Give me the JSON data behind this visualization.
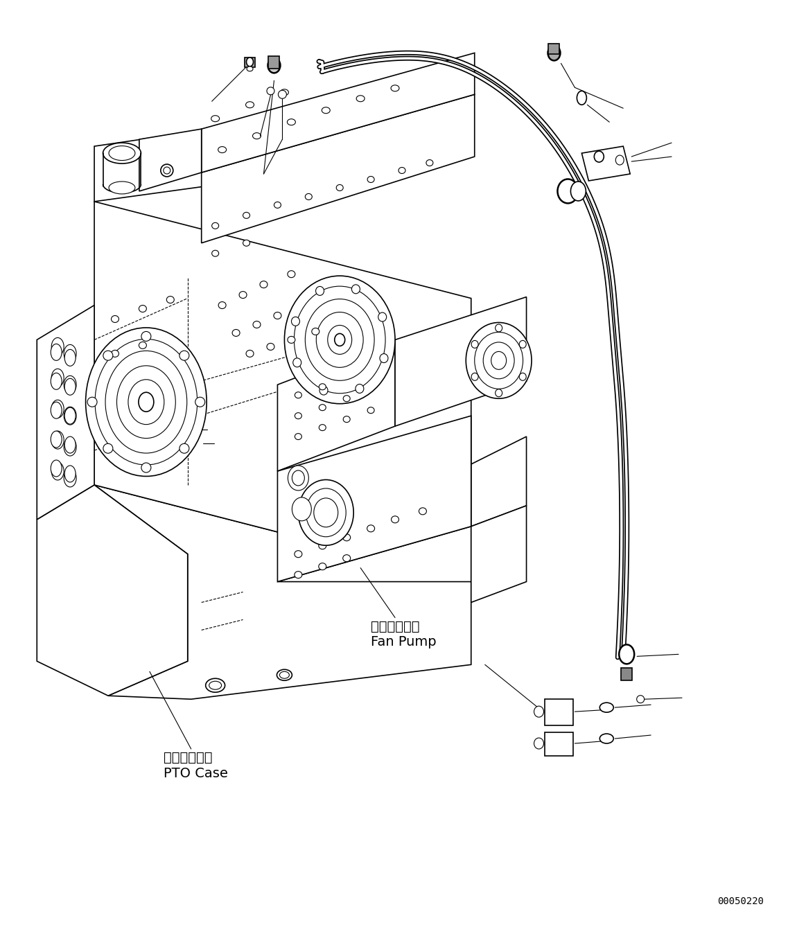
{
  "bg_color": "#ffffff",
  "line_color": "#000000",
  "fig_width": 11.63,
  "fig_height": 13.38,
  "dpi": 100,
  "label_pto_case_jp": "ＰＴＯケース",
  "label_pto_case_en": "PTO Case",
  "label_fan_pump_jp": "ファンポンプ",
  "label_fan_pump_en": "Fan Pump",
  "watermark": "00050220"
}
